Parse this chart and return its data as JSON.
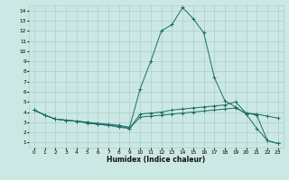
{
  "title": "",
  "xlabel": "Humidex (Indice chaleur)",
  "ylabel": "",
  "bg_color": "#cce8e4",
  "grid_color": "#aacfcc",
  "line_color": "#1a6e66",
  "xlim": [
    -0.5,
    23.5
  ],
  "ylim": [
    0.5,
    14.5
  ],
  "xticks": [
    0,
    1,
    2,
    3,
    4,
    5,
    6,
    7,
    8,
    9,
    10,
    11,
    12,
    13,
    14,
    15,
    16,
    17,
    18,
    19,
    20,
    21,
    22,
    23
  ],
  "yticks": [
    1,
    2,
    3,
    4,
    5,
    6,
    7,
    8,
    9,
    10,
    11,
    12,
    13,
    14
  ],
  "lines": [
    {
      "x": [
        0,
        1,
        2,
        3,
        4,
        5,
        6,
        7,
        8,
        9,
        10,
        11,
        12,
        13,
        14,
        15,
        16,
        17,
        18,
        19,
        20,
        21,
        22,
        23
      ],
      "y": [
        4.2,
        3.7,
        3.3,
        3.2,
        3.1,
        3.0,
        2.9,
        2.8,
        2.7,
        2.5,
        6.3,
        9.0,
        12.0,
        12.6,
        14.3,
        13.2,
        11.8,
        7.4,
        5.1,
        4.5,
        3.8,
        2.4,
        1.2,
        0.9
      ]
    },
    {
      "x": [
        0,
        1,
        2,
        3,
        4,
        5,
        6,
        7,
        8,
        9,
        10,
        11,
        12,
        13,
        14,
        15,
        16,
        17,
        18,
        19,
        20,
        21,
        22,
        23
      ],
      "y": [
        4.2,
        3.7,
        3.3,
        3.2,
        3.1,
        3.0,
        2.8,
        2.7,
        2.5,
        2.4,
        3.8,
        3.9,
        4.0,
        4.2,
        4.3,
        4.4,
        4.5,
        4.6,
        4.7,
        5.0,
        3.9,
        3.8,
        3.6,
        3.4
      ]
    },
    {
      "x": [
        0,
        1,
        2,
        3,
        4,
        5,
        6,
        7,
        8,
        9,
        10,
        11,
        12,
        13,
        14,
        15,
        16,
        17,
        18,
        19,
        20,
        21,
        22,
        23
      ],
      "y": [
        4.2,
        3.7,
        3.3,
        3.2,
        3.1,
        2.9,
        2.8,
        2.7,
        2.6,
        2.4,
        3.5,
        3.6,
        3.7,
        3.8,
        3.9,
        4.0,
        4.1,
        4.2,
        4.3,
        4.4,
        3.9,
        3.7,
        1.2,
        0.9
      ]
    }
  ]
}
